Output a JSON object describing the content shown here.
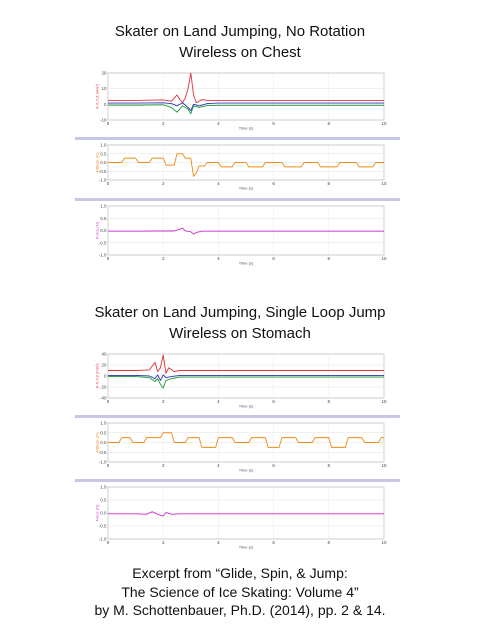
{
  "headings": {
    "top_line1": "Skater on Land Jumping, No Rotation",
    "top_line2": "Wireless on Chest",
    "bottom_line1": "Skater on Land Jumping, Single Loop Jump",
    "bottom_line2": "Wireless on Stomach"
  },
  "caption": {
    "line1": "Excerpt from “Glide, Spin, & Jump:",
    "line2": "The Science of Ice Skating: Volume 4”",
    "line3": "by M. Schottenbauer, Ph.D. (2014), pp. 2 & 14."
  },
  "colors": {
    "red": "#e0303a",
    "blue": "#2a36b0",
    "green": "#1f9a3a",
    "orange": "#ef8a17",
    "magenta": "#cc33cc",
    "separator": "#c7c7e6"
  },
  "chart_data": [
    {
      "type": "line",
      "panel": "top-acceleration",
      "xlabel": "Time (s)",
      "ylabel": "A-X,Y,Z (m/s²)",
      "xlim": [
        0,
        10
      ],
      "ylim": [
        -10,
        20
      ],
      "xticks": [
        "0",
        "2",
        "4",
        "6",
        "8",
        "10"
      ],
      "yticks": [
        "-10",
        "0",
        "10",
        "20"
      ],
      "series": [
        {
          "color": "red",
          "x": [
            0,
            1,
            2,
            2.3,
            2.5,
            2.6,
            2.7,
            2.8,
            2.9,
            3.0,
            3.1,
            3.2,
            3.4,
            3.6,
            3.8,
            4,
            6,
            8,
            10
          ],
          "y": [
            2.5,
            2.5,
            2.8,
            2,
            6,
            3,
            1,
            4,
            10,
            20,
            6,
            1,
            3,
            2.5,
            2.5,
            2.5,
            2.5,
            2.5,
            2.5
          ]
        },
        {
          "color": "blue",
          "x": [
            0,
            1,
            2,
            2.3,
            2.5,
            2.7,
            2.9,
            3.0,
            3.1,
            3.3,
            3.6,
            4,
            6,
            8,
            10
          ],
          "y": [
            0.8,
            0.8,
            1,
            0.5,
            -1,
            1,
            -2,
            -4,
            0,
            -1,
            0.5,
            0.8,
            0.8,
            0.8,
            0.8
          ]
        },
        {
          "color": "green",
          "x": [
            0,
            1,
            2,
            2.3,
            2.5,
            2.7,
            2.9,
            3.0,
            3.1,
            3.3,
            3.6,
            4,
            6,
            8,
            10
          ],
          "y": [
            -0.5,
            -0.5,
            -0.3,
            -2,
            -5,
            -1,
            -3,
            -6,
            -1,
            -2,
            -0.8,
            -0.6,
            -0.6,
            -0.6,
            -0.6
          ]
        }
      ]
    },
    {
      "type": "line",
      "panel": "top-altitude",
      "xlabel": "Time (s)",
      "ylabel": "Altitude (m)",
      "xlim": [
        0,
        10
      ],
      "ylim": [
        -1,
        1
      ],
      "xticks": [
        "0",
        "2",
        "4",
        "6",
        "8",
        "10"
      ],
      "yticks": [
        "-1.0",
        "-0.5",
        "0.0",
        "0.5",
        "1.0"
      ],
      "series": [
        {
          "color": "orange",
          "x": [
            0,
            0.5,
            0.6,
            1,
            1.1,
            1.5,
            1.6,
            2,
            2.1,
            2.4,
            2.5,
            2.7,
            2.8,
            3.0,
            3.1,
            3.2,
            3.3,
            3.5,
            3.6,
            4,
            4.1,
            4.5,
            4.6,
            5,
            5.1,
            5.6,
            5.7,
            6.3,
            6.4,
            7,
            7.1,
            7.6,
            7.7,
            8.3,
            8.4,
            9,
            9.1,
            9.6,
            9.7,
            10
          ],
          "y": [
            0,
            0,
            0.25,
            0.25,
            0,
            0,
            0.25,
            0.25,
            -0.15,
            -0.15,
            0.5,
            0.5,
            0.25,
            0.25,
            -0.8,
            -0.6,
            -0.2,
            -0.2,
            0,
            0,
            -0.25,
            -0.25,
            0,
            0,
            -0.25,
            -0.25,
            0,
            0,
            -0.25,
            -0.25,
            0,
            0,
            -0.25,
            -0.25,
            0,
            0,
            -0.25,
            -0.25,
            0,
            0
          ]
        }
      ]
    },
    {
      "type": "line",
      "panel": "top-force",
      "xlabel": "Time (s)",
      "ylabel": "Force (N)",
      "xlim": [
        0,
        10
      ],
      "ylim": [
        -1,
        1
      ],
      "xticks": [
        "0",
        "2",
        "4",
        "6",
        "8",
        "10"
      ],
      "yticks": [
        "-1.0",
        "-0.5",
        "0.0",
        "0.5",
        "1.0"
      ],
      "series": [
        {
          "color": "magenta",
          "x": [
            0,
            1,
            2,
            2.4,
            2.6,
            2.7,
            2.8,
            3.0,
            3.1,
            3.2,
            3.4,
            4,
            6,
            8,
            10
          ],
          "y": [
            -0.03,
            -0.03,
            -0.02,
            -0.02,
            0.05,
            0.1,
            -0.02,
            -0.05,
            -0.15,
            -0.08,
            -0.03,
            -0.03,
            -0.03,
            -0.03,
            -0.03
          ]
        }
      ]
    },
    {
      "type": "line",
      "panel": "bottom-acceleration",
      "xlabel": "Time (s)",
      "ylabel": "A-X,Y,Z (m/s²)",
      "xlim": [
        0,
        10
      ],
      "ylim": [
        -40,
        40
      ],
      "xticks": [
        "0",
        "2",
        "4",
        "6",
        "8",
        "10"
      ],
      "yticks": [
        "-40",
        "-20",
        "0",
        "20",
        "40"
      ],
      "series": [
        {
          "color": "red",
          "x": [
            0,
            1,
            1.5,
            1.7,
            1.8,
            1.9,
            2.0,
            2.1,
            2.2,
            2.4,
            2.6,
            3,
            4,
            6,
            8,
            10
          ],
          "y": [
            10,
            10,
            11,
            25,
            8,
            15,
            38,
            5,
            15,
            8,
            10,
            10,
            10,
            10,
            10,
            10
          ]
        },
        {
          "color": "blue",
          "x": [
            0,
            1,
            1.5,
            1.7,
            1.8,
            1.9,
            2.0,
            2.1,
            2.3,
            2.6,
            3,
            4,
            6,
            8,
            10
          ],
          "y": [
            1,
            1,
            0,
            -5,
            2,
            -8,
            2,
            -3,
            -1,
            1,
            1,
            1,
            1,
            1,
            1
          ]
        },
        {
          "color": "green",
          "x": [
            0,
            1,
            1.5,
            1.7,
            1.8,
            1.9,
            2.0,
            2.1,
            2.3,
            2.6,
            3,
            4,
            6,
            8,
            10
          ],
          "y": [
            -1,
            -1,
            -3,
            -10,
            -5,
            -15,
            -22,
            -8,
            -5,
            -2,
            -2,
            -2,
            -2,
            -2,
            -2
          ]
        }
      ]
    },
    {
      "type": "line",
      "panel": "bottom-altitude",
      "xlabel": "Time (s)",
      "ylabel": "Altitude (m)",
      "xlim": [
        0,
        10
      ],
      "ylim": [
        -1,
        1
      ],
      "xticks": [
        "0",
        "2",
        "4",
        "6",
        "8",
        "10"
      ],
      "yticks": [
        "-1.0",
        "-0.5",
        "0.0",
        "0.5",
        "1.0"
      ],
      "series": [
        {
          "color": "orange",
          "x": [
            0,
            0.4,
            0.5,
            0.8,
            0.9,
            1.3,
            1.4,
            1.9,
            2.0,
            2.3,
            2.4,
            2.8,
            2.9,
            3.3,
            3.4,
            3.9,
            4.0,
            4.5,
            4.6,
            5.1,
            5.2,
            5.7,
            5.8,
            6.2,
            6.3,
            6.8,
            6.9,
            7.4,
            7.5,
            8,
            8.1,
            8.6,
            8.7,
            9.2,
            9.3,
            9.8,
            9.9,
            10
          ],
          "y": [
            0,
            0,
            0.25,
            0.25,
            0,
            0,
            0.25,
            0.25,
            0.5,
            0.5,
            0,
            0,
            0.25,
            0.25,
            -0.25,
            -0.25,
            0.25,
            0.25,
            0,
            0,
            0.25,
            0.25,
            -0.25,
            -0.25,
            0.25,
            0.25,
            0,
            0,
            0.25,
            0.25,
            -0.25,
            -0.25,
            0.25,
            0.25,
            0,
            0,
            0.25,
            0.25
          ]
        }
      ]
    },
    {
      "type": "line",
      "panel": "bottom-force",
      "xlabel": "Time (s)",
      "ylabel": "Force (N)",
      "xlim": [
        0,
        10
      ],
      "ylim": [
        -1,
        1
      ],
      "xticks": [
        "0",
        "2",
        "4",
        "6",
        "8",
        "10"
      ],
      "yticks": [
        "-1.0",
        "-0.5",
        "0.0",
        "0.5",
        "1.0"
      ],
      "series": [
        {
          "color": "magenta",
          "x": [
            0,
            1,
            1.4,
            1.6,
            1.8,
            2.0,
            2.1,
            2.3,
            2.6,
            3,
            4,
            6,
            8,
            10
          ],
          "y": [
            -0.03,
            -0.03,
            -0.05,
            0.05,
            -0.05,
            -0.12,
            0.02,
            -0.05,
            -0.03,
            -0.03,
            -0.03,
            -0.03,
            -0.03,
            -0.03
          ]
        }
      ]
    }
  ]
}
